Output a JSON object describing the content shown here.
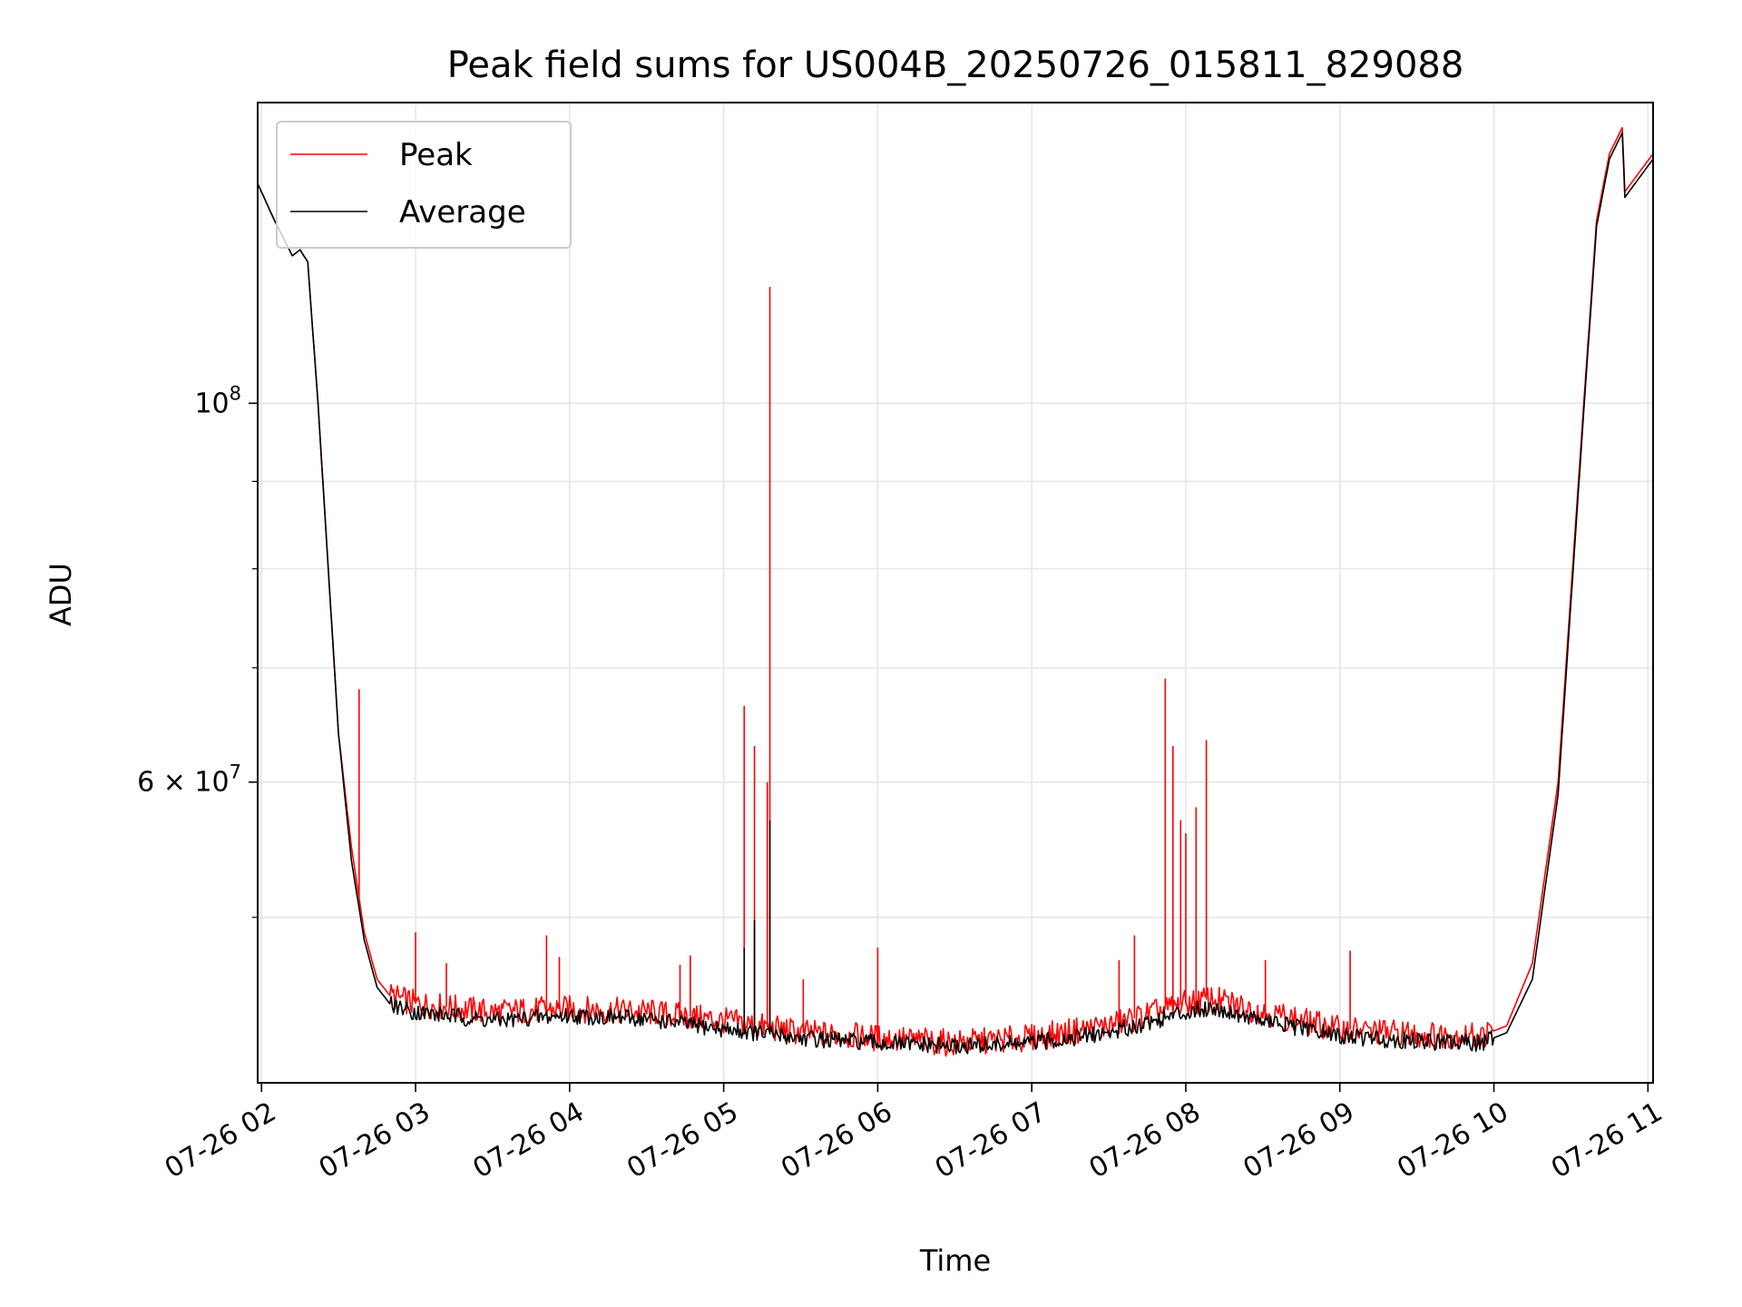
{
  "chart_data": {
    "type": "line",
    "title": "Peak field sums for US004B_20250726_015811_829088",
    "xlabel": "Time",
    "ylabel": "ADU",
    "yscale": "log",
    "ylim": [
      40000000,
      150000000
    ],
    "xlim": [
      "2025-07-26 01:58:30",
      "2025-07-26 11:02:00"
    ],
    "grid": true,
    "legend_position": "top-left",
    "x_ticks": [
      {
        "value": "2025-07-26 02:00",
        "label": "07-26 02"
      },
      {
        "value": "2025-07-26 03:00",
        "label": "07-26 03"
      },
      {
        "value": "2025-07-26 04:00",
        "label": "07-26 04"
      },
      {
        "value": "2025-07-26 05:00",
        "label": "07-26 05"
      },
      {
        "value": "2025-07-26 06:00",
        "label": "07-26 06"
      },
      {
        "value": "2025-07-26 07:00",
        "label": "07-26 07"
      },
      {
        "value": "2025-07-26 08:00",
        "label": "07-26 08"
      },
      {
        "value": "2025-07-26 09:00",
        "label": "07-26 09"
      },
      {
        "value": "2025-07-26 10:00",
        "label": "07-26 10"
      },
      {
        "value": "2025-07-26 11:00",
        "label": "07-26 11"
      }
    ],
    "y_ticks": [
      {
        "value": 60000000,
        "mantissa": "6",
        "base": "10",
        "exponent": "7"
      },
      {
        "value": 100000000,
        "mantissa": "",
        "base": "10",
        "exponent": "8"
      }
    ],
    "y_minor_ticks": [
      50000000,
      70000000,
      80000000,
      90000000
    ],
    "series": [
      {
        "name": "Peak",
        "color": "#ff0000",
        "x": [
          "2025-07-26 01:58",
          "2025-07-26 02:05",
          "2025-07-26 02:12",
          "2025-07-26 02:15",
          "2025-07-26 02:18",
          "2025-07-26 02:22",
          "2025-07-26 02:26",
          "2025-07-26 02:30",
          "2025-07-26 02:35",
          "2025-07-26 02:40",
          "2025-07-26 02:45",
          "2025-07-26 02:50",
          "2025-07-26 03:00",
          "2025-07-26 03:30",
          "2025-07-26 04:00",
          "2025-07-26 04:30",
          "2025-07-26 05:00",
          "2025-07-26 05:30",
          "2025-07-26 06:00",
          "2025-07-26 06:30",
          "2025-07-26 07:00",
          "2025-07-26 07:30",
          "2025-07-26 08:00",
          "2025-07-26 08:10",
          "2025-07-26 08:30",
          "2025-07-26 09:00",
          "2025-07-26 09:30",
          "2025-07-26 09:55",
          "2025-07-26 10:05",
          "2025-07-26 10:15",
          "2025-07-26 10:25",
          "2025-07-26 10:35",
          "2025-07-26 10:40",
          "2025-07-26 10:45",
          "2025-07-26 10:50",
          "2025-07-26 10:51",
          "2025-07-26 11:02"
        ],
        "y": [
          135000000,
          128000000,
          122000000,
          123000000,
          121000000,
          100000000,
          80000000,
          64000000,
          55000000,
          49000000,
          46000000,
          45000000,
          44500000,
          44000000,
          44200000,
          44000000,
          43500000,
          42800000,
          42500000,
          42200000,
          42500000,
          43200000,
          44500000,
          44800000,
          44000000,
          43000000,
          42700000,
          42600000,
          43200000,
          47000000,
          60000000,
          100000000,
          128000000,
          140000000,
          145000000,
          133000000,
          140000000
        ]
      },
      {
        "name": "Average",
        "color": "#000000",
        "x": [
          "2025-07-26 01:58",
          "2025-07-26 02:05",
          "2025-07-26 02:12",
          "2025-07-26 02:15",
          "2025-07-26 02:18",
          "2025-07-26 02:22",
          "2025-07-26 02:26",
          "2025-07-26 02:30",
          "2025-07-26 02:35",
          "2025-07-26 02:40",
          "2025-07-26 02:45",
          "2025-07-26 02:50",
          "2025-07-26 03:00",
          "2025-07-26 03:30",
          "2025-07-26 04:00",
          "2025-07-26 04:30",
          "2025-07-26 05:00",
          "2025-07-26 05:30",
          "2025-07-26 06:00",
          "2025-07-26 06:30",
          "2025-07-26 07:00",
          "2025-07-26 07:30",
          "2025-07-26 08:00",
          "2025-07-26 08:10",
          "2025-07-26 08:30",
          "2025-07-26 09:00",
          "2025-07-26 09:30",
          "2025-07-26 09:55",
          "2025-07-26 10:05",
          "2025-07-26 10:15",
          "2025-07-26 10:25",
          "2025-07-26 10:35",
          "2025-07-26 10:40",
          "2025-07-26 10:45",
          "2025-07-26 10:50",
          "2025-07-26 10:51",
          "2025-07-26 11:02"
        ],
        "y": [
          135000000,
          128000000,
          122000000,
          123000000,
          121000000,
          100000000,
          80000000,
          64000000,
          54000000,
          48500000,
          45500000,
          44500000,
          44000000,
          43500000,
          43800000,
          43600000,
          43000000,
          42500000,
          42200000,
          42000000,
          42200000,
          42800000,
          44000000,
          44300000,
          43500000,
          42600000,
          42300000,
          42200000,
          42800000,
          46000000,
          59000000,
          99000000,
          127000000,
          139000000,
          144000000,
          132000000,
          139000000
        ]
      }
    ],
    "peak_spikes": [
      {
        "x": "2025-07-26 02:38",
        "y": 68000000
      },
      {
        "x": "2025-07-26 03:00",
        "y": 49000000
      },
      {
        "x": "2025-07-26 03:12",
        "y": 47000000
      },
      {
        "x": "2025-07-26 03:51",
        "y": 48800000
      },
      {
        "x": "2025-07-26 03:56",
        "y": 47400000
      },
      {
        "x": "2025-07-26 04:43",
        "y": 46900000
      },
      {
        "x": "2025-07-26 04:47",
        "y": 47500000
      },
      {
        "x": "2025-07-26 05:08",
        "y": 66500000
      },
      {
        "x": "2025-07-26 05:12",
        "y": 63000000
      },
      {
        "x": "2025-07-26 05:17",
        "y": 60000000
      },
      {
        "x": "2025-07-26 05:18",
        "y": 117000000
      },
      {
        "x": "2025-07-26 05:31",
        "y": 46000000
      },
      {
        "x": "2025-07-26 06:00",
        "y": 48000000
      },
      {
        "x": "2025-07-26 07:34",
        "y": 47200000
      },
      {
        "x": "2025-07-26 07:40",
        "y": 48800000
      },
      {
        "x": "2025-07-26 07:52",
        "y": 69000000
      },
      {
        "x": "2025-07-26 07:55",
        "y": 63000000
      },
      {
        "x": "2025-07-26 07:58",
        "y": 57000000
      },
      {
        "x": "2025-07-26 08:00",
        "y": 56000000
      },
      {
        "x": "2025-07-26 08:04",
        "y": 58000000
      },
      {
        "x": "2025-07-26 08:08",
        "y": 63500000
      },
      {
        "x": "2025-07-26 08:31",
        "y": 47200000
      },
      {
        "x": "2025-07-26 09:04",
        "y": 47800000
      }
    ],
    "avg_spikes": [
      {
        "x": "2025-07-26 05:08",
        "y": 48000000
      },
      {
        "x": "2025-07-26 05:12",
        "y": 49800000
      },
      {
        "x": "2025-07-26 05:18",
        "y": 57000000
      }
    ]
  }
}
